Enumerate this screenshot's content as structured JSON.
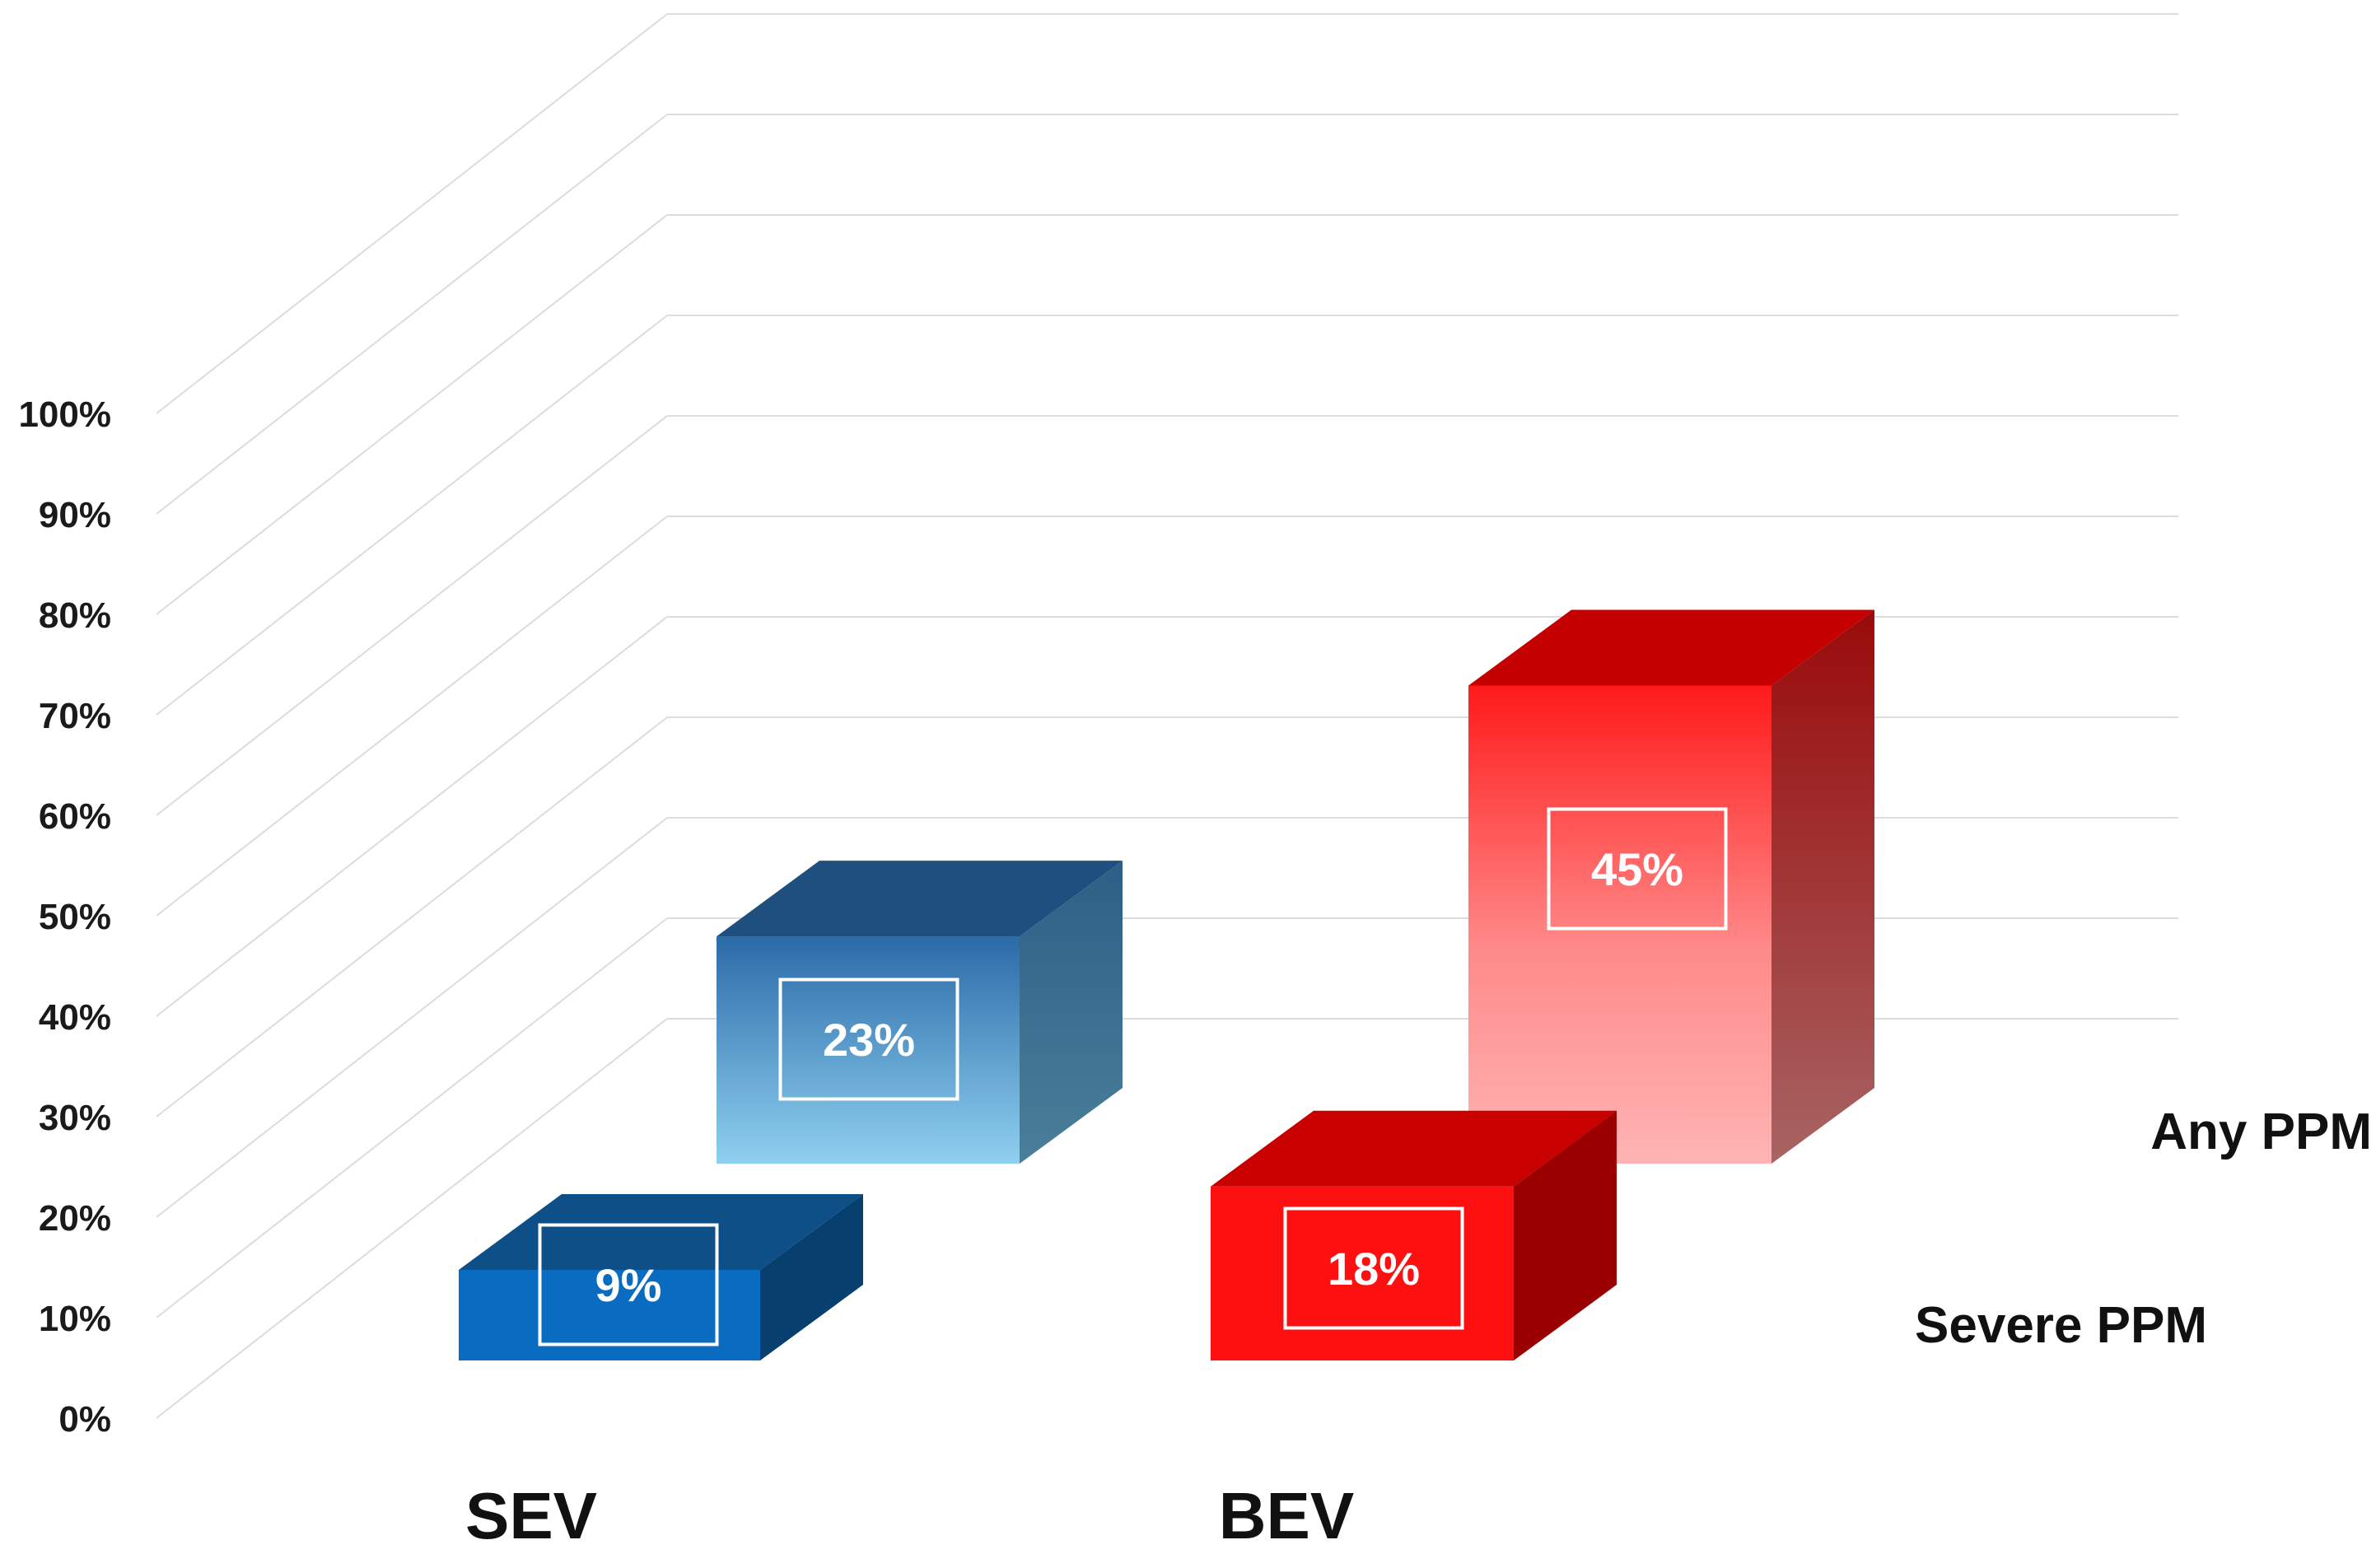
{
  "chart_data": {
    "type": "bar",
    "categories": [
      "SEV",
      "BEV"
    ],
    "series": [
      {
        "name": "Severe PPM",
        "values": [
          9,
          18
        ],
        "value_labels": [
          "9%",
          "18%"
        ]
      },
      {
        "name": "Any PPM",
        "values": [
          23,
          45
        ],
        "value_labels": [
          "23%",
          "45%"
        ]
      }
    ],
    "ylim": [
      0,
      100
    ],
    "yticks": [
      0,
      10,
      20,
      30,
      40,
      50,
      60,
      70,
      80,
      90,
      100
    ],
    "ytick_labels": [
      "0%",
      "10%",
      "20%",
      "30%",
      "40%",
      "50%",
      "60%",
      "70%",
      "80%",
      "90%",
      "100%"
    ],
    "title": "",
    "xlabel": "",
    "ylabel": "",
    "grid": true,
    "legend": "none",
    "three_d": true,
    "colors": {
      "SEV": {
        "front": "#0a6cc0",
        "front_dark": "#0a5aa0",
        "top": "#0e4f88",
        "side": "#07406e",
        "light_top": "#1e4f7e",
        "light_front_top": "#2b6aa8",
        "light_front_bottom": "#8fd0f0",
        "light_side": "#4a7f9a"
      },
      "BEV": {
        "front": "#ff1010",
        "top": "#c80000",
        "side": "#9a0000",
        "light_top": "#c40000",
        "light_front_top": "#ff1a1a",
        "light_front_bottom": "#ffb0b0",
        "light_side": "#a05858"
      },
      "grid": "#dcdcdc"
    }
  }
}
